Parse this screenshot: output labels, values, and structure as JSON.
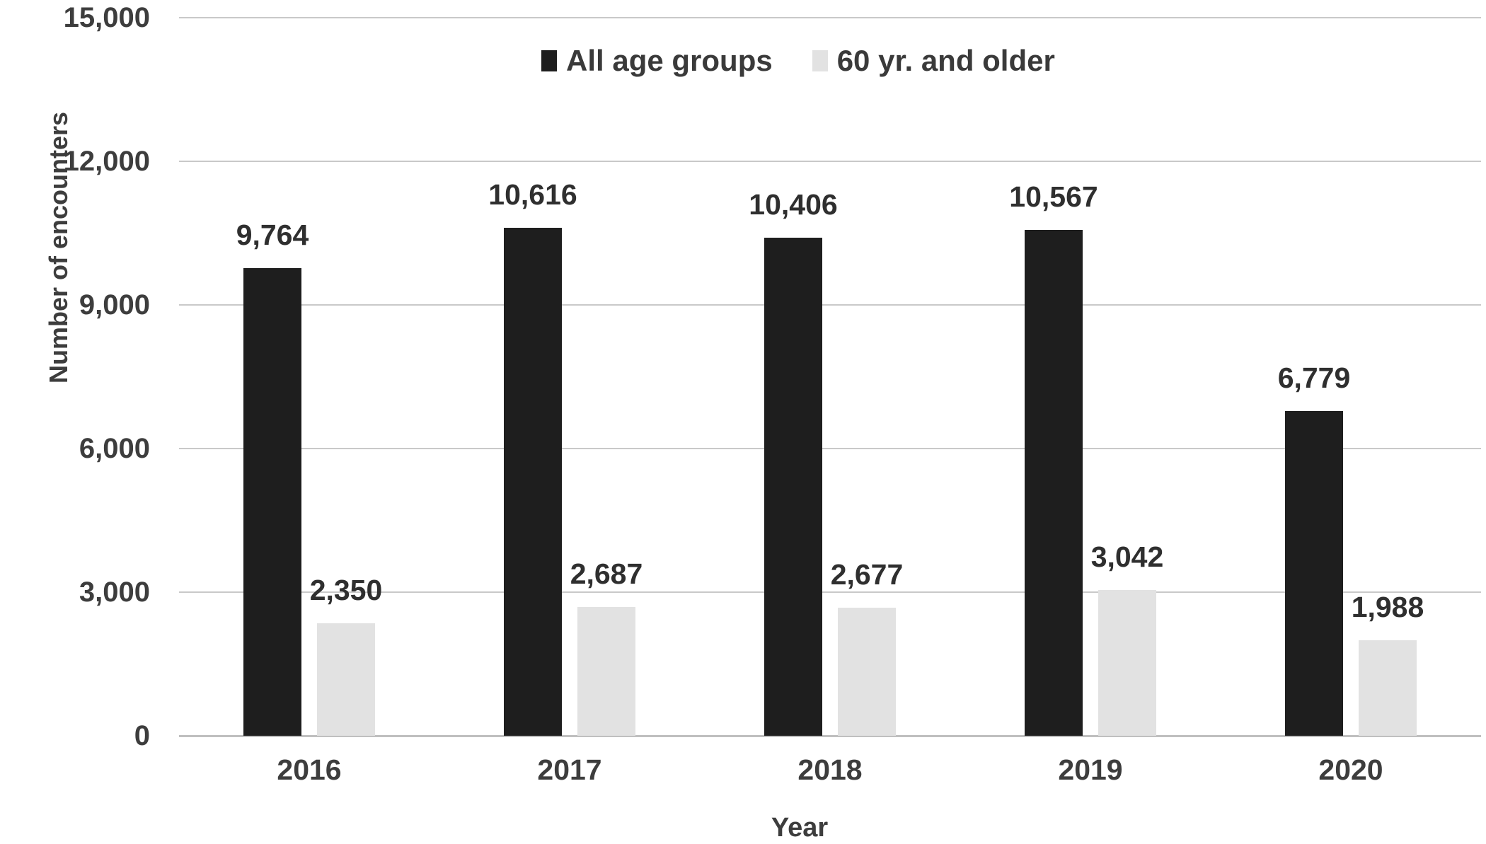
{
  "chart_data": {
    "type": "bar",
    "title": "",
    "categories": [
      "2016",
      "2017",
      "2018",
      "2019",
      "2020"
    ],
    "series": [
      {
        "name": "All age groups",
        "color": "#1e1e1e",
        "values": [
          9764,
          10616,
          10406,
          10567,
          6779
        ],
        "labels": [
          "9,764",
          "10,616",
          "10,406",
          "10,567",
          "6,779"
        ]
      },
      {
        "name": "60 yr. and older",
        "color": "#e2e2e2",
        "values": [
          2350,
          2687,
          2677,
          3042,
          1988
        ],
        "labels": [
          "2,350",
          "2,687",
          "2,677",
          "3,042",
          "1,988"
        ]
      }
    ],
    "xlabel": "Year",
    "ylabel": "Number of encounters",
    "ylim": [
      0,
      15000
    ],
    "ytick_step": 3000,
    "yticks": [
      {
        "value": 0,
        "label": "0"
      },
      {
        "value": 3000,
        "label": "3,000"
      },
      {
        "value": 6000,
        "label": "6,000"
      },
      {
        "value": 9000,
        "label": "9,000"
      },
      {
        "value": 12000,
        "label": "12,000"
      },
      {
        "value": 15000,
        "label": "15,000"
      }
    ],
    "grid": true,
    "legend_position": "top"
  },
  "colors": {
    "background": "#ffffff",
    "gridline": "#c9c9c9",
    "baseline": "#bfbfbf",
    "axis_text": "#3d3d3d",
    "data_label_text": "#2f2f2f",
    "series_all_ages": "#1e1e1e",
    "series_60_older": "#e2e2e2"
  }
}
